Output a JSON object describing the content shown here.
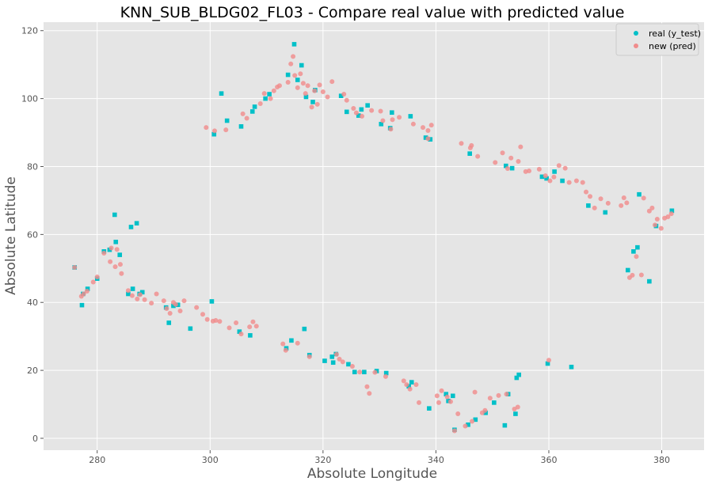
{
  "chart_data": {
    "type": "scatter",
    "title": "KNN_SUB_BLDG02_FL03 - Compare real value with predicted value",
    "xlabel": "Absolute Longitude",
    "ylabel": "Absolute Latitude",
    "xlim": [
      270.5,
      387.5
    ],
    "ylim": [
      -3.5,
      122.5
    ],
    "x_ticks": [
      280,
      300,
      320,
      340,
      360,
      380
    ],
    "y_ticks": [
      0,
      20,
      40,
      60,
      80,
      100,
      120
    ],
    "grid": true,
    "legend_position": "top-right",
    "style": {
      "background": "#e5e5e5",
      "grid_color": "#ffffff"
    },
    "series": [
      {
        "name": "real (y_test)",
        "color": "#00c0c8",
        "marker": "square",
        "points": [
          [
            276,
            50.3
          ],
          [
            277.3,
            39.2
          ],
          [
            277.5,
            42.5
          ],
          [
            278.3,
            44
          ],
          [
            280,
            47
          ],
          [
            281.2,
            55
          ],
          [
            282.2,
            55.5
          ],
          [
            283.1,
            65.8
          ],
          [
            283.3,
            57.8
          ],
          [
            284,
            54
          ],
          [
            285.5,
            42.5
          ],
          [
            286,
            62.2
          ],
          [
            286.3,
            44
          ],
          [
            287,
            63.3
          ],
          [
            287.5,
            42.5
          ],
          [
            288,
            43
          ],
          [
            292.2,
            38.5
          ],
          [
            292.7,
            34
          ],
          [
            293.5,
            39
          ],
          [
            294.3,
            39.3
          ],
          [
            296.5,
            32.3
          ],
          [
            300.3,
            40.3
          ],
          [
            300.7,
            89.5
          ],
          [
            302,
            101.5
          ],
          [
            303,
            93.5
          ],
          [
            305.5,
            91.8
          ],
          [
            305.2,
            31.4
          ],
          [
            307.1,
            30.3
          ],
          [
            307.5,
            96.2
          ],
          [
            307.9,
            97.6
          ],
          [
            309.8,
            100
          ],
          [
            310.5,
            101.3
          ],
          [
            313.5,
            26.5
          ],
          [
            313.8,
            107
          ],
          [
            314.4,
            28.8
          ],
          [
            314.9,
            116
          ],
          [
            315.5,
            105.5
          ],
          [
            316.2,
            109.8
          ],
          [
            316.7,
            32.2
          ],
          [
            317,
            100.5
          ],
          [
            317.6,
            24.5
          ],
          [
            318.2,
            99
          ],
          [
            318.6,
            102.5
          ],
          [
            320.3,
            22.8
          ],
          [
            321.6,
            24
          ],
          [
            321.8,
            22.3
          ],
          [
            322.3,
            24.8
          ],
          [
            323.2,
            100.8
          ],
          [
            324.2,
            96.1
          ],
          [
            324.5,
            21.8
          ],
          [
            325.6,
            19.5
          ],
          [
            326.3,
            95
          ],
          [
            326.8,
            96.8
          ],
          [
            327.3,
            19.5
          ],
          [
            327.9,
            98
          ],
          [
            329.5,
            19.8
          ],
          [
            330.3,
            92.5
          ],
          [
            331.2,
            19.2
          ],
          [
            331.9,
            91.3
          ],
          [
            332.2,
            95.9
          ],
          [
            335.2,
            15.3
          ],
          [
            335.5,
            94.8
          ],
          [
            335.7,
            16.5
          ],
          [
            338.2,
            88.5
          ],
          [
            338.8,
            8.8
          ],
          [
            339,
            88
          ],
          [
            341.8,
            13
          ],
          [
            342.2,
            11
          ],
          [
            343,
            12.5
          ],
          [
            343.3,
            2.5
          ],
          [
            345.7,
            4
          ],
          [
            346,
            83.8
          ],
          [
            347,
            5.5
          ],
          [
            348.8,
            7.5
          ],
          [
            350.3,
            10.5
          ],
          [
            352.2,
            3.8
          ],
          [
            352.4,
            80.2
          ],
          [
            352.8,
            13
          ],
          [
            353.5,
            79.5
          ],
          [
            354.1,
            7.2
          ],
          [
            354.3,
            17.8
          ],
          [
            354.7,
            18.7
          ],
          [
            358.8,
            77
          ],
          [
            359.6,
            76.5
          ],
          [
            359.8,
            22
          ],
          [
            361,
            78.5
          ],
          [
            362.4,
            75.8
          ],
          [
            364,
            21
          ],
          [
            367,
            68.5
          ],
          [
            370,
            66.5
          ],
          [
            374,
            49.5
          ],
          [
            375,
            55
          ],
          [
            375.7,
            56.2
          ],
          [
            376,
            71.8
          ],
          [
            377.8,
            46.2
          ],
          [
            379,
            62.5
          ],
          [
            381.8,
            67
          ]
        ]
      },
      {
        "name": "new (pred)",
        "color": "#f08c8c",
        "marker": "circle",
        "points": [
          [
            276,
            50.3
          ],
          [
            277.2,
            41.8
          ],
          [
            277.6,
            42.5
          ],
          [
            278.2,
            43.3
          ],
          [
            279.3,
            46
          ],
          [
            280,
            47.5
          ],
          [
            281.2,
            54.5
          ],
          [
            282.3,
            52
          ],
          [
            282.5,
            56
          ],
          [
            283.2,
            50.5
          ],
          [
            283.5,
            55.6
          ],
          [
            284.1,
            51.2
          ],
          [
            284.3,
            48.5
          ],
          [
            285.5,
            43.5
          ],
          [
            286.2,
            42
          ],
          [
            287.1,
            41
          ],
          [
            287.6,
            42.3
          ],
          [
            288.4,
            40.8
          ],
          [
            289.6,
            39.8
          ],
          [
            290.5,
            42.5
          ],
          [
            291.8,
            40.5
          ],
          [
            292.3,
            38.2
          ],
          [
            292.9,
            36.8
          ],
          [
            293.5,
            40
          ],
          [
            294.7,
            37.5
          ],
          [
            295.4,
            40.5
          ],
          [
            297.6,
            38.5
          ],
          [
            298.7,
            36.5
          ],
          [
            299.3,
            91.5
          ],
          [
            299.5,
            35
          ],
          [
            300.5,
            34.5
          ],
          [
            300.8,
            90.5
          ],
          [
            301.7,
            34.4
          ],
          [
            302.8,
            90.8
          ],
          [
            303.4,
            32.5
          ],
          [
            304.6,
            34
          ],
          [
            305.8,
            95.5
          ],
          [
            305.5,
            30.7
          ],
          [
            306.5,
            94.2
          ],
          [
            307,
            32.8
          ],
          [
            307.6,
            34.3
          ],
          [
            308.2,
            33
          ],
          [
            308.9,
            98.5
          ],
          [
            309.6,
            101.5
          ],
          [
            310.7,
            100
          ],
          [
            311.3,
            102.3
          ],
          [
            311.9,
            103.4
          ],
          [
            312.3,
            103.8
          ],
          [
            312.9,
            27.8
          ],
          [
            313.4,
            25.9
          ],
          [
            313.8,
            104.8
          ],
          [
            314.3,
            110.2
          ],
          [
            314.7,
            112.4
          ],
          [
            315,
            106.8
          ],
          [
            315.5,
            103.2
          ],
          [
            316,
            107.3
          ],
          [
            316.5,
            104.5
          ],
          [
            316.9,
            101.5
          ],
          [
            317.3,
            103.8
          ],
          [
            317.6,
            24
          ],
          [
            318,
            97.5
          ],
          [
            318.5,
            102.3
          ],
          [
            319,
            98.3
          ],
          [
            319.4,
            104
          ],
          [
            320,
            102
          ],
          [
            320.8,
            100.5
          ],
          [
            321.6,
            105
          ],
          [
            322.4,
            24.7
          ],
          [
            322.9,
            23.3
          ],
          [
            323.7,
            101.3
          ],
          [
            324.2,
            99.5
          ],
          [
            325.2,
            21.2
          ],
          [
            325.4,
            97.1
          ],
          [
            325.9,
            95.8
          ],
          [
            326.5,
            19.5
          ],
          [
            326.9,
            94.8
          ],
          [
            327.8,
            15.2
          ],
          [
            328.2,
            13.2
          ],
          [
            328.6,
            96.5
          ],
          [
            329.2,
            19.4
          ],
          [
            330.2,
            96.3
          ],
          [
            330.6,
            93.5
          ],
          [
            331.1,
            18.2
          ],
          [
            332.3,
            93.8
          ],
          [
            333.5,
            94.5
          ],
          [
            334.3,
            16.9
          ],
          [
            334.8,
            15.8
          ],
          [
            335.4,
            14.5
          ],
          [
            336,
            92.5
          ],
          [
            336.5,
            15.8
          ],
          [
            337,
            10.5
          ],
          [
            337.7,
            91.5
          ],
          [
            338.6,
            90.6
          ],
          [
            339.2,
            92.2
          ],
          [
            340.2,
            12.5
          ],
          [
            340.5,
            10.5
          ],
          [
            341,
            14
          ],
          [
            342,
            12.2
          ],
          [
            342.6,
            10.8
          ],
          [
            343.3,
            2.2
          ],
          [
            343.9,
            7.2
          ],
          [
            344.5,
            86.8
          ],
          [
            345.2,
            3.6
          ],
          [
            346.1,
            85.5
          ],
          [
            346.4,
            5
          ],
          [
            346.9,
            13.6
          ],
          [
            347.4,
            83
          ],
          [
            348.2,
            7.5
          ],
          [
            348.7,
            8.2
          ],
          [
            349.6,
            11.8
          ],
          [
            350.5,
            81.2
          ],
          [
            351.1,
            12.6
          ],
          [
            351.8,
            84
          ],
          [
            352.5,
            13
          ],
          [
            352.7,
            79.4
          ],
          [
            353.3,
            82.5
          ],
          [
            353.9,
            8.6
          ],
          [
            354.6,
            81.5
          ],
          [
            355,
            85.8
          ],
          [
            355.9,
            78.5
          ],
          [
            356.5,
            78.7
          ],
          [
            358.3,
            79.2
          ],
          [
            359.4,
            77.3
          ],
          [
            360.2,
            75.8
          ],
          [
            360.9,
            76.9
          ],
          [
            361.8,
            80.3
          ],
          [
            362.9,
            79.5
          ],
          [
            363.6,
            75.3
          ],
          [
            364.9,
            75.8
          ],
          [
            366,
            75.3
          ],
          [
            366.6,
            72.5
          ],
          [
            367.3,
            71.2
          ],
          [
            368.1,
            67.8
          ],
          [
            369.2,
            70.5
          ],
          [
            370.5,
            69.2
          ],
          [
            372.8,
            68.5
          ],
          [
            373.3,
            70.8
          ],
          [
            373.8,
            69.3
          ],
          [
            374.3,
            47.3
          ],
          [
            374.8,
            48
          ],
          [
            375.5,
            53.5
          ],
          [
            376.4,
            48.1
          ],
          [
            376.8,
            70.7
          ],
          [
            377.8,
            66.9
          ],
          [
            378.3,
            67.8
          ],
          [
            378.8,
            62.8
          ],
          [
            379.2,
            64.5
          ],
          [
            379.9,
            61.8
          ],
          [
            380.5,
            64.8
          ],
          [
            381.1,
            65.2
          ],
          [
            381.7,
            66.1
          ],
          [
            338.6,
            88.2
          ],
          [
            332,
            91
          ],
          [
            323.5,
            22.5
          ],
          [
            315.5,
            28
          ],
          [
            301,
            34.7
          ],
          [
            293.9,
            39.4
          ],
          [
            346.3,
            86.2
          ],
          [
            360,
            23
          ],
          [
            354.5,
            9.2
          ]
        ]
      }
    ]
  }
}
